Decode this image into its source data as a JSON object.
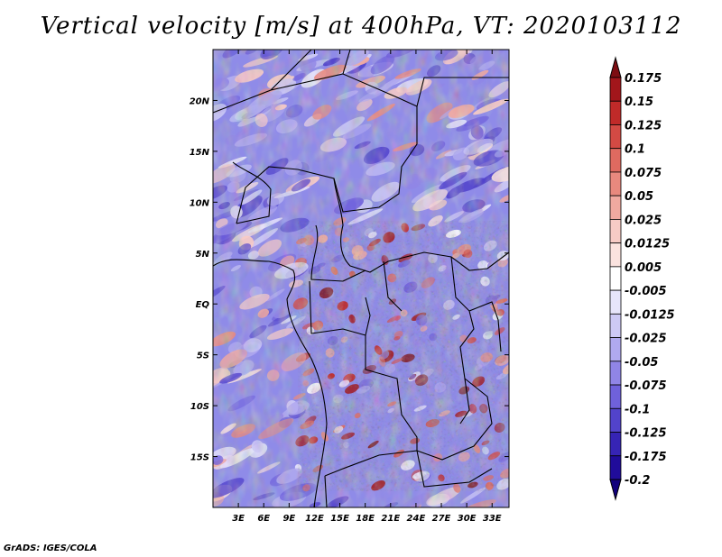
{
  "chart_data": {
    "type": "heatmap",
    "title": "Vertical velocity [m/s] at 400hPa, VT: 2020103112",
    "variable": "Vertical velocity",
    "units": "m/s",
    "level": "400hPa",
    "valid_time": "2020103112",
    "x_range_deg": [
      0,
      35
    ],
    "y_range_deg": [
      -20,
      25
    ],
    "x_ticks": [
      {
        "value": 3,
        "label": "3E"
      },
      {
        "value": 6,
        "label": "6E"
      },
      {
        "value": 9,
        "label": "9E"
      },
      {
        "value": 12,
        "label": "12E"
      },
      {
        "value": 15,
        "label": "15E"
      },
      {
        "value": 18,
        "label": "18E"
      },
      {
        "value": 21,
        "label": "21E"
      },
      {
        "value": 24,
        "label": "24E"
      },
      {
        "value": 27,
        "label": "27E"
      },
      {
        "value": 30,
        "label": "30E"
      },
      {
        "value": 33,
        "label": "33E"
      }
    ],
    "y_ticks": [
      {
        "value": 20,
        "label": "20N"
      },
      {
        "value": 15,
        "label": "15N"
      },
      {
        "value": 10,
        "label": "10N"
      },
      {
        "value": 5,
        "label": "5N"
      },
      {
        "value": 0,
        "label": "EQ"
      },
      {
        "value": -5,
        "label": "5S"
      },
      {
        "value": -10,
        "label": "10S"
      },
      {
        "value": -15,
        "label": "15S"
      }
    ],
    "colorbar": {
      "labels": [
        "0.175",
        "0.15",
        "0.125",
        "0.1",
        "0.075",
        "0.05",
        "0.025",
        "0.0125",
        "0.005",
        "-0.005",
        "-0.0125",
        "-0.025",
        "-0.05",
        "-0.075",
        "-0.1",
        "-0.125",
        "-0.175",
        "-0.2"
      ],
      "colors": [
        "#7d0d12",
        "#a2161b",
        "#c02a29",
        "#d34a44",
        "#df6a60",
        "#e8897e",
        "#f0a9a0",
        "#f7cbc5",
        "#fbe3df",
        "#ffffff",
        "#e7e5fb",
        "#cdc9f5",
        "#b0a9ef",
        "#9085e6",
        "#6f61db",
        "#5243cb",
        "#3624b5",
        "#200c9a",
        "#11007c"
      ]
    }
  },
  "credit": "GrADS: IGES/COLA"
}
